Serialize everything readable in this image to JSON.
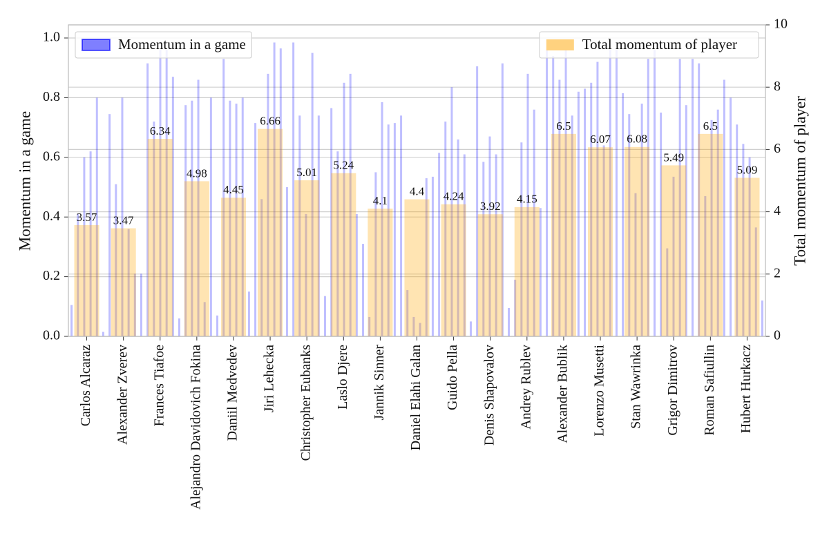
{
  "chart_data": [
    {
      "type": "bar",
      "ylabel": "Momentum in a game",
      "ylim": [
        0,
        1.044
      ],
      "yticks": [
        {
          "value": 0,
          "label": "0.0"
        },
        0.2,
        0.4,
        0.6,
        0.8,
        {
          "value": 1,
          "label": "1.0"
        }
      ],
      "grid": true,
      "legend": "upper left",
      "series": [
        {
          "name": "Momentum in a game",
          "color": "#0000ff",
          "values": [
            0.105,
            0.41,
            0.6,
            0.62,
            0.8,
            0.015,
            0.745,
            0.51,
            0.8,
            0.36,
            0.21,
            0.21,
            0.915,
            0.72,
            0.96,
            0.96,
            0.87,
            0.06,
            0.775,
            0.79,
            0.86,
            0.115,
            0.8,
            0.07,
            0.93,
            0.79,
            0.78,
            0.8,
            0.15,
            0.715,
            0.46,
            0.88,
            0.985,
            0.965,
            0.5,
            0.985,
            0.74,
            0.41,
            0.95,
            0.74,
            0.135,
            0.765,
            0.62,
            0.85,
            0.88,
            0.41,
            0.31,
            0.065,
            0.55,
            0.785,
            0.71,
            0.715,
            0.74,
            0.155,
            0.065,
            0.045,
            0.53,
            0.535,
            0.615,
            0.72,
            0.835,
            0.66,
            0.61,
            0.05,
            0.905,
            0.585,
            0.67,
            0.61,
            0.915,
            0.095,
            0.19,
            0.65,
            0.88,
            0.76,
            0.43,
            0.96,
            0.94,
            0.86,
            0.96,
            0.74,
            0.82,
            0.83,
            0.85,
            0.92,
            0.64,
            0.96,
            0.96,
            0.815,
            0.745,
            0.48,
            0.78,
            0.93,
            0.96,
            0.75,
            0.295,
            0.535,
            0.93,
            0.775,
            0.93,
            0.915,
            0.47,
            0.725,
            0.76,
            0.86,
            0.8,
            0.71,
            0.645,
            0.6,
            0.365,
            0.12
          ]
        }
      ]
    },
    {
      "type": "bar",
      "categories": [
        "Carlos Alcaraz",
        "Alexander Zverev",
        "Frances Tiafoe",
        "Alejandro Davidovich Fokina",
        "Daniil Medvedev",
        "Jiri Lehecka",
        "Christopher Eubanks",
        "Laslo Djere",
        "Jannik Sinner",
        "Daniel Elahi Galan",
        "Guido Pella",
        "Denis Shapovalov",
        "Andrey Rublev",
        "Alexander Bublik",
        "Lorenzo Musetti",
        "Stan Wawrinka",
        "Grigor Dimitrov",
        "Roman Safiullin",
        "Hubert Hurkacz"
      ],
      "y2label": "Total momentum of player",
      "y2lim": [
        0,
        10
      ],
      "y2ticks": [
        0,
        2,
        4,
        6,
        8,
        10
      ],
      "grid": true,
      "legend": "upper right",
      "series": [
        {
          "name": "Total momentum of player",
          "color": "#ffa500",
          "axis": "y2",
          "values": [
            3.57,
            3.47,
            6.34,
            4.98,
            4.45,
            6.66,
            5.01,
            5.24,
            4.1,
            4.4,
            4.24,
            3.92,
            4.15,
            6.5,
            6.07,
            6.08,
            5.49,
            6.5,
            5.09
          ]
        }
      ]
    }
  ]
}
